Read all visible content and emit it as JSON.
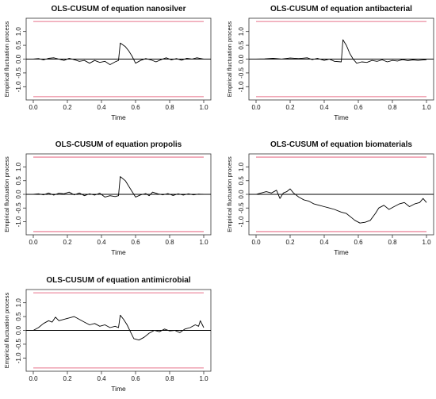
{
  "chart_data": [
    {
      "type": "line",
      "title": "OLS-CUSUM of equation nanosilver",
      "xlabel": "Time",
      "ylabel": "Empirical fluctuation process",
      "xlim": [
        0,
        1
      ],
      "ylim": [
        -1.45,
        1.45
      ],
      "xticks": [
        "0.0",
        "0.2",
        "0.4",
        "0.6",
        "0.8",
        "1.0"
      ],
      "yticks": [
        "-1.0",
        "-0.5",
        "0.0",
        "0.5",
        "1.0"
      ],
      "boundaries": [
        1.36,
        -1.36
      ],
      "series": [
        {
          "points": [
            [
              0.0,
              0
            ],
            [
              0.03,
              0.02
            ],
            [
              0.06,
              -0.03
            ],
            [
              0.09,
              0.03
            ],
            [
              0.12,
              0.05
            ],
            [
              0.15,
              0.0
            ],
            [
              0.18,
              -0.05
            ],
            [
              0.21,
              0.03
            ],
            [
              0.24,
              -0.02
            ],
            [
              0.27,
              -0.08
            ],
            [
              0.3,
              -0.05
            ],
            [
              0.33,
              -0.15
            ],
            [
              0.36,
              -0.05
            ],
            [
              0.39,
              -0.12
            ],
            [
              0.42,
              -0.08
            ],
            [
              0.45,
              -0.2
            ],
            [
              0.48,
              -0.1
            ],
            [
              0.5,
              -0.05
            ],
            [
              0.51,
              0.58
            ],
            [
              0.54,
              0.45
            ],
            [
              0.56,
              0.3
            ],
            [
              0.58,
              0.1
            ],
            [
              0.6,
              -0.15
            ],
            [
              0.63,
              -0.05
            ],
            [
              0.66,
              0.02
            ],
            [
              0.69,
              -0.03
            ],
            [
              0.72,
              -0.1
            ],
            [
              0.75,
              -0.02
            ],
            [
              0.78,
              0.05
            ],
            [
              0.81,
              -0.03
            ],
            [
              0.84,
              0.02
            ],
            [
              0.87,
              -0.04
            ],
            [
              0.9,
              0.03
            ],
            [
              0.93,
              0.0
            ],
            [
              0.96,
              0.05
            ],
            [
              1.0,
              0.0
            ]
          ]
        }
      ]
    },
    {
      "type": "line",
      "title": "OLS-CUSUM of equation antibacterial",
      "xlabel": "Time",
      "ylabel": "Empirical fluctuation process",
      "xlim": [
        0,
        1
      ],
      "ylim": [
        -1.45,
        1.45
      ],
      "xticks": [
        "0.0",
        "0.2",
        "0.4",
        "0.6",
        "0.8",
        "1.0"
      ],
      "yticks": [
        "-1.0",
        "-0.5",
        "0.0",
        "0.5",
        "1.0"
      ],
      "boundaries": [
        1.36,
        -1.36
      ],
      "series": [
        {
          "points": [
            [
              0.0,
              0
            ],
            [
              0.05,
              0.01
            ],
            [
              0.1,
              0.03
            ],
            [
              0.15,
              0.0
            ],
            [
              0.2,
              0.04
            ],
            [
              0.25,
              0.02
            ],
            [
              0.3,
              0.05
            ],
            [
              0.33,
              -0.02
            ],
            [
              0.36,
              0.03
            ],
            [
              0.4,
              -0.05
            ],
            [
              0.43,
              0.0
            ],
            [
              0.46,
              -0.08
            ],
            [
              0.5,
              -0.1
            ],
            [
              0.51,
              0.7
            ],
            [
              0.53,
              0.5
            ],
            [
              0.55,
              0.2
            ],
            [
              0.57,
              0.0
            ],
            [
              0.59,
              -0.15
            ],
            [
              0.62,
              -0.1
            ],
            [
              0.65,
              -0.12
            ],
            [
              0.68,
              -0.05
            ],
            [
              0.71,
              -0.08
            ],
            [
              0.74,
              -0.03
            ],
            [
              0.77,
              -0.1
            ],
            [
              0.8,
              -0.05
            ],
            [
              0.83,
              -0.07
            ],
            [
              0.86,
              -0.02
            ],
            [
              0.89,
              -0.06
            ],
            [
              0.92,
              -0.03
            ],
            [
              0.95,
              -0.05
            ],
            [
              1.0,
              -0.02
            ]
          ]
        }
      ]
    },
    {
      "type": "line",
      "title": "OLS-CUSUM of equation propolis",
      "xlabel": "Time",
      "ylabel": "Empirical fluctuation process",
      "xlim": [
        0,
        1
      ],
      "ylim": [
        -1.45,
        1.45
      ],
      "xticks": [
        "0.0",
        "0.2",
        "0.4",
        "0.6",
        "0.8",
        "1.0"
      ],
      "yticks": [
        "-1.0",
        "-0.5",
        "0.0",
        "0.5",
        "1.0"
      ],
      "boundaries": [
        1.36,
        -1.36
      ],
      "series": [
        {
          "points": [
            [
              0.0,
              0
            ],
            [
              0.03,
              0.02
            ],
            [
              0.06,
              -0.02
            ],
            [
              0.09,
              0.05
            ],
            [
              0.12,
              -0.03
            ],
            [
              0.15,
              0.04
            ],
            [
              0.18,
              0.02
            ],
            [
              0.21,
              0.08
            ],
            [
              0.24,
              -0.02
            ],
            [
              0.27,
              0.05
            ],
            [
              0.3,
              -0.05
            ],
            [
              0.33,
              0.02
            ],
            [
              0.36,
              -0.03
            ],
            [
              0.39,
              0.04
            ],
            [
              0.42,
              -0.1
            ],
            [
              0.45,
              -0.05
            ],
            [
              0.48,
              -0.08
            ],
            [
              0.5,
              -0.05
            ],
            [
              0.51,
              0.65
            ],
            [
              0.54,
              0.5
            ],
            [
              0.56,
              0.3
            ],
            [
              0.58,
              0.1
            ],
            [
              0.6,
              -0.1
            ],
            [
              0.63,
              -0.02
            ],
            [
              0.66,
              0.03
            ],
            [
              0.68,
              -0.05
            ],
            [
              0.7,
              0.08
            ],
            [
              0.73,
              0.02
            ],
            [
              0.76,
              -0.02
            ],
            [
              0.79,
              0.03
            ],
            [
              0.82,
              -0.04
            ],
            [
              0.85,
              0.02
            ],
            [
              0.88,
              -0.03
            ],
            [
              0.91,
              0.02
            ],
            [
              0.94,
              -0.02
            ],
            [
              0.97,
              0.01
            ],
            [
              1.0,
              0.0
            ]
          ]
        }
      ]
    },
    {
      "type": "line",
      "title": "OLS-CUSUM of equation biomaterials",
      "xlabel": "Time",
      "ylabel": "Empirical fluctuation process",
      "xlim": [
        0,
        1
      ],
      "ylim": [
        -1.45,
        1.45
      ],
      "xticks": [
        "0.0",
        "0.2",
        "0.4",
        "0.6",
        "0.8",
        "1.0"
      ],
      "yticks": [
        "-1.0",
        "-0.5",
        "0.0",
        "0.5",
        "1.0"
      ],
      "boundaries": [
        1.36,
        -1.36
      ],
      "series": [
        {
          "points": [
            [
              0.0,
              0
            ],
            [
              0.03,
              0.05
            ],
            [
              0.06,
              0.1
            ],
            [
              0.09,
              0.05
            ],
            [
              0.12,
              0.15
            ],
            [
              0.14,
              -0.15
            ],
            [
              0.16,
              0.05
            ],
            [
              0.18,
              0.1
            ],
            [
              0.2,
              0.2
            ],
            [
              0.22,
              0.05
            ],
            [
              0.25,
              -0.1
            ],
            [
              0.28,
              -0.2
            ],
            [
              0.31,
              -0.25
            ],
            [
              0.34,
              -0.35
            ],
            [
              0.37,
              -0.4
            ],
            [
              0.4,
              -0.45
            ],
            [
              0.43,
              -0.5
            ],
            [
              0.46,
              -0.55
            ],
            [
              0.5,
              -0.65
            ],
            [
              0.53,
              -0.7
            ],
            [
              0.56,
              -0.85
            ],
            [
              0.58,
              -0.95
            ],
            [
              0.61,
              -1.05
            ],
            [
              0.64,
              -1.02
            ],
            [
              0.67,
              -0.95
            ],
            [
              0.7,
              -0.7
            ],
            [
              0.72,
              -0.5
            ],
            [
              0.75,
              -0.4
            ],
            [
              0.78,
              -0.55
            ],
            [
              0.81,
              -0.45
            ],
            [
              0.84,
              -0.35
            ],
            [
              0.87,
              -0.3
            ],
            [
              0.9,
              -0.45
            ],
            [
              0.93,
              -0.35
            ],
            [
              0.96,
              -0.3
            ],
            [
              0.98,
              -0.15
            ],
            [
              1.0,
              -0.3
            ]
          ]
        }
      ]
    },
    {
      "type": "line",
      "title": "OLS-CUSUM of equation antimicrobial",
      "xlabel": "Time",
      "ylabel": "Empirical fluctuation process",
      "xlim": [
        0,
        1
      ],
      "ylim": [
        -1.45,
        1.45
      ],
      "xticks": [
        "0.0",
        "0.2",
        "0.4",
        "0.6",
        "0.8",
        "1.0"
      ],
      "yticks": [
        "-1.0",
        "-0.5",
        "0.0",
        "0.5",
        "1.0"
      ],
      "boundaries": [
        1.36,
        -1.36
      ],
      "series": [
        {
          "points": [
            [
              0.0,
              0
            ],
            [
              0.03,
              0.1
            ],
            [
              0.06,
              0.25
            ],
            [
              0.09,
              0.35
            ],
            [
              0.11,
              0.3
            ],
            [
              0.13,
              0.48
            ],
            [
              0.15,
              0.35
            ],
            [
              0.18,
              0.4
            ],
            [
              0.21,
              0.45
            ],
            [
              0.24,
              0.5
            ],
            [
              0.27,
              0.4
            ],
            [
              0.3,
              0.3
            ],
            [
              0.33,
              0.2
            ],
            [
              0.36,
              0.25
            ],
            [
              0.39,
              0.15
            ],
            [
              0.42,
              0.2
            ],
            [
              0.45,
              0.1
            ],
            [
              0.48,
              0.15
            ],
            [
              0.5,
              0.1
            ],
            [
              0.51,
              0.55
            ],
            [
              0.53,
              0.4
            ],
            [
              0.55,
              0.2
            ],
            [
              0.57,
              -0.05
            ],
            [
              0.59,
              -0.3
            ],
            [
              0.62,
              -0.35
            ],
            [
              0.65,
              -0.25
            ],
            [
              0.68,
              -0.1
            ],
            [
              0.71,
              0.0
            ],
            [
              0.74,
              -0.05
            ],
            [
              0.77,
              0.05
            ],
            [
              0.8,
              -0.02
            ],
            [
              0.83,
              0.0
            ],
            [
              0.86,
              -0.08
            ],
            [
              0.89,
              0.05
            ],
            [
              0.92,
              0.1
            ],
            [
              0.95,
              0.2
            ],
            [
              0.97,
              0.15
            ],
            [
              0.98,
              0.35
            ],
            [
              1.0,
              0.1
            ]
          ]
        }
      ]
    }
  ]
}
